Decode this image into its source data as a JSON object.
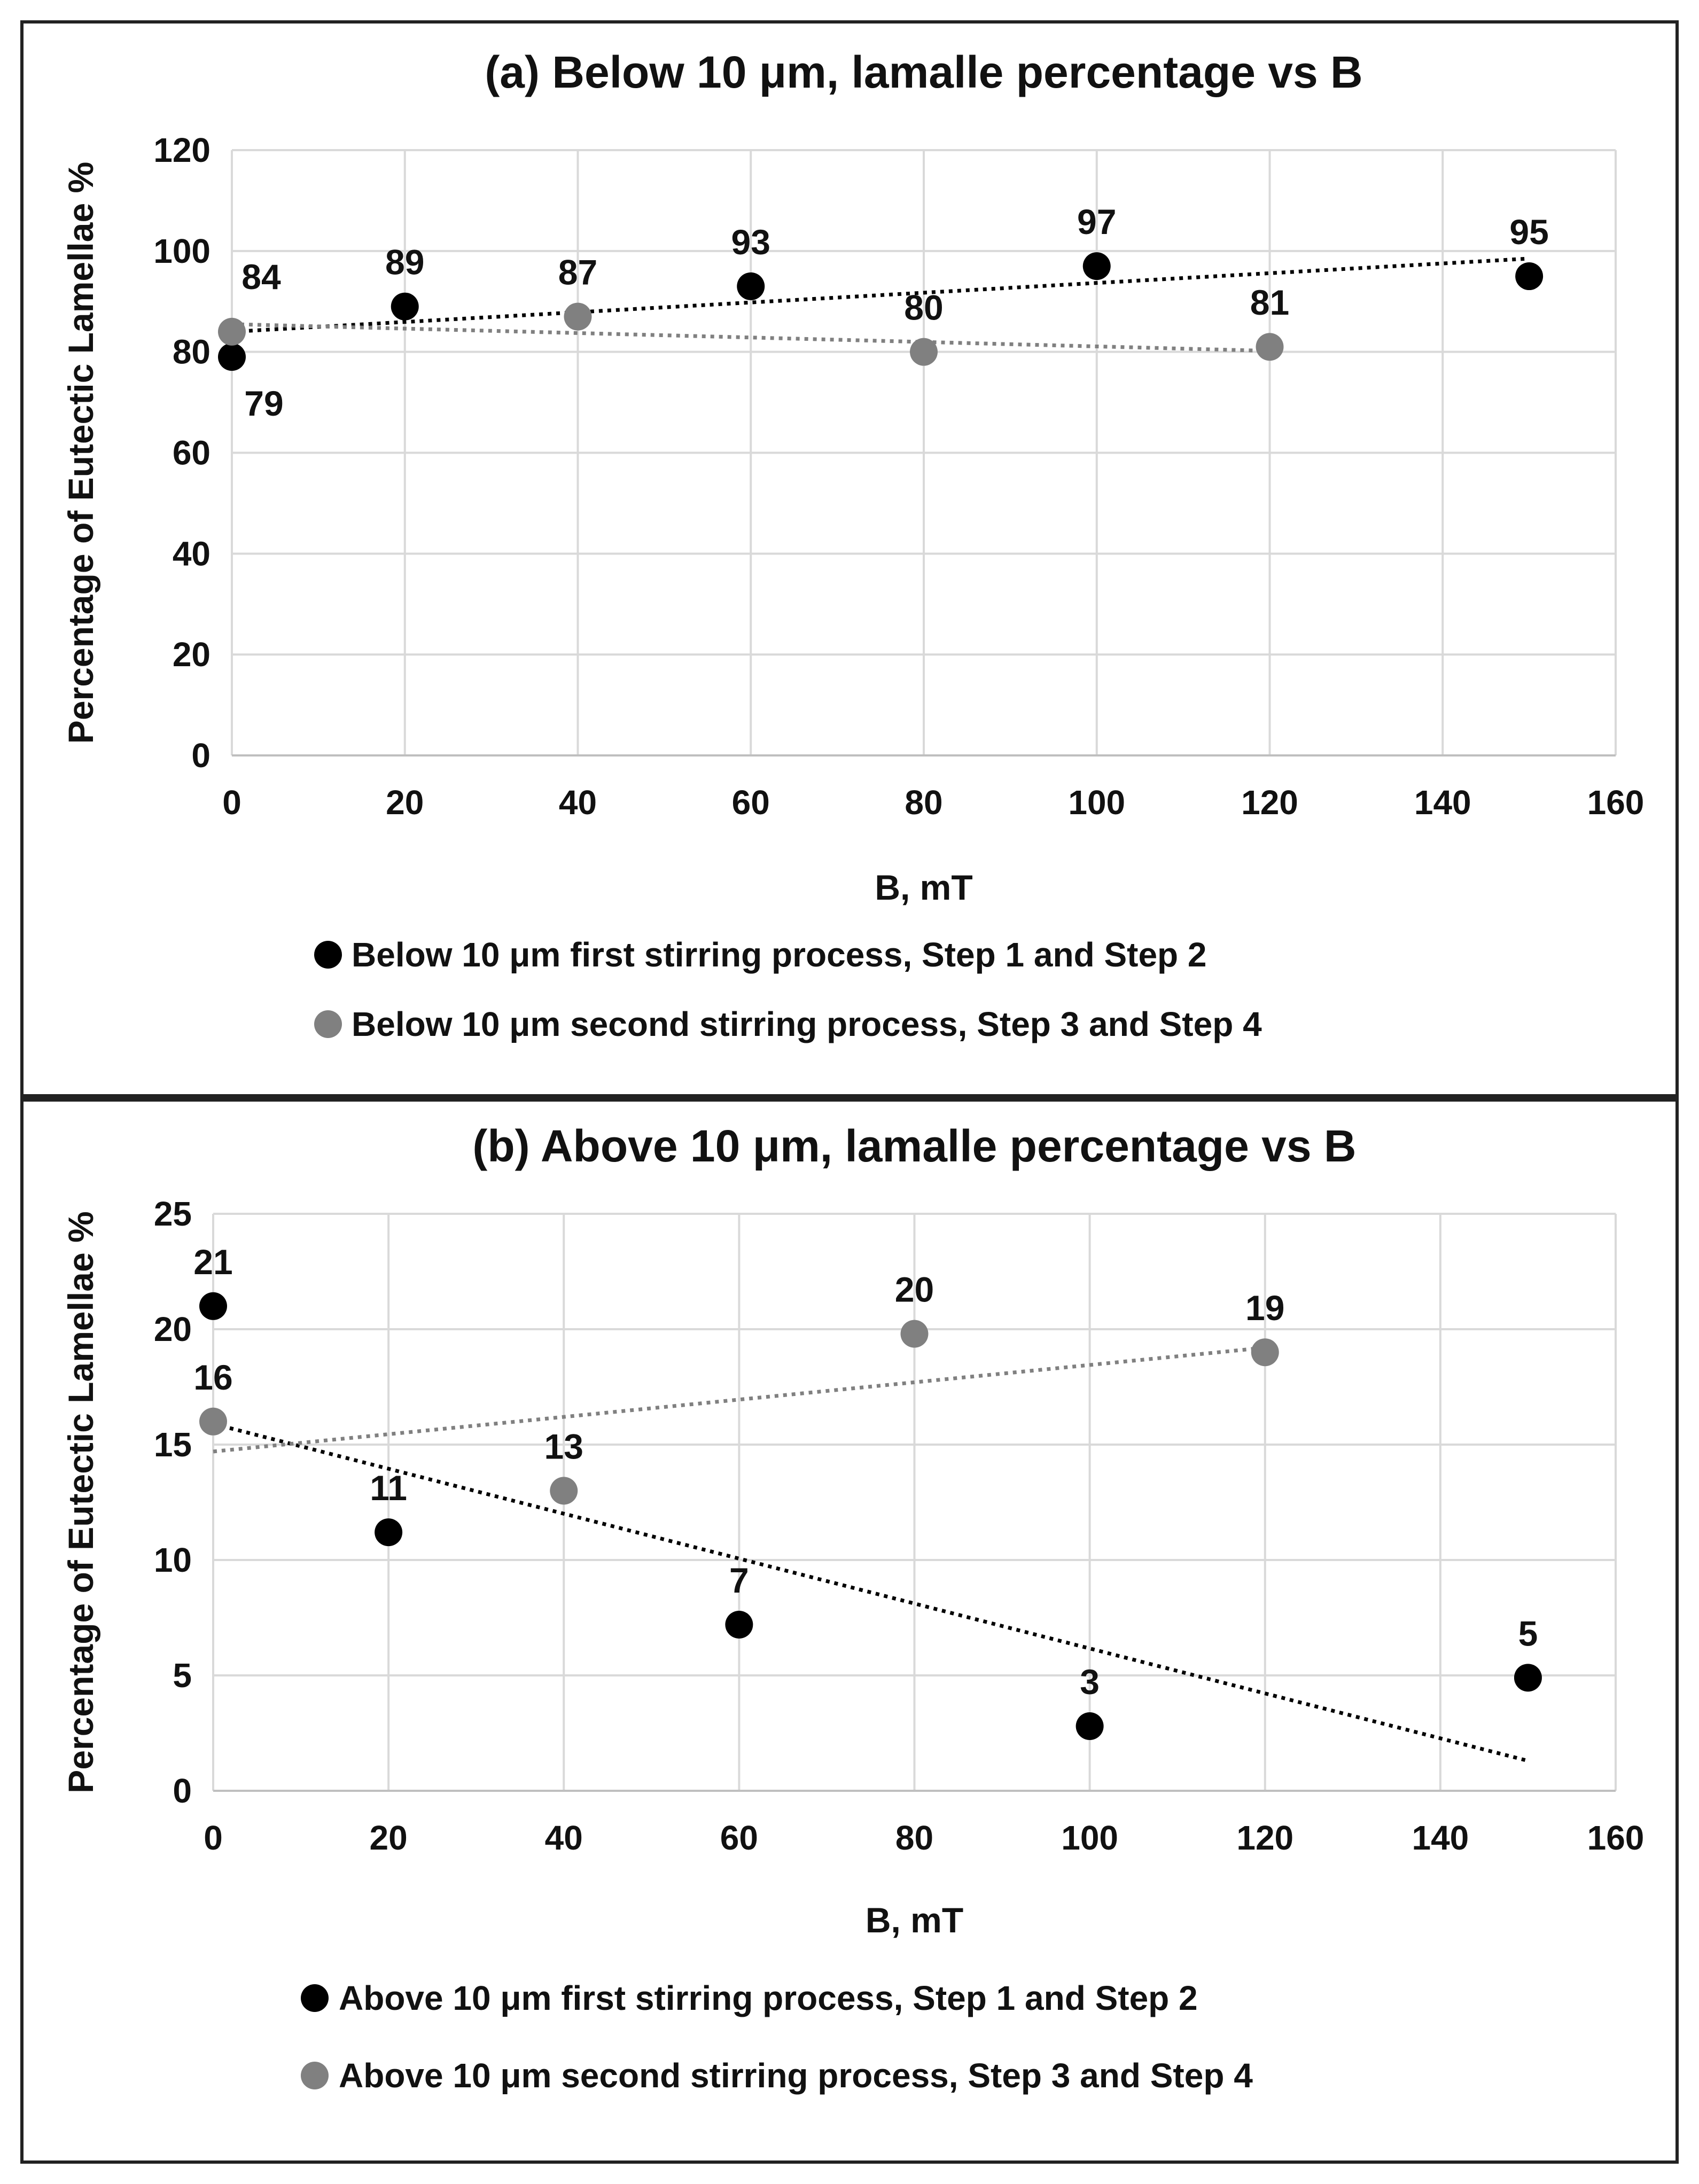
{
  "chart_data": [
    {
      "type": "scatter",
      "title": "(a) Below 10 μm,  lamalle percentage vs B",
      "xlabel": "B, mT",
      "ylabel": "Percentage of Eutectic Lamellae %",
      "xlim": [
        0,
        160
      ],
      "ylim": [
        0,
        120
      ],
      "xticks": [
        0,
        20,
        40,
        60,
        80,
        100,
        120,
        140,
        160
      ],
      "yticks": [
        0,
        20,
        40,
        60,
        80,
        100,
        120
      ],
      "grid": true,
      "legend_position": "bottom",
      "series": [
        {
          "name": "Below 10 μm first stirring process, Step 1 and Step 2",
          "color": "#000000",
          "x": [
            0,
            20,
            60,
            100,
            150
          ],
          "y": [
            79,
            89,
            93,
            97,
            95
          ],
          "labels": [
            "79",
            "89",
            "93",
            "97",
            "95"
          ],
          "label_pos": [
            "below",
            "above",
            "above",
            "above",
            "above"
          ],
          "trendline": {
            "type": "linear-dotted",
            "y_start": 84.0,
            "y_end": 98.5
          }
        },
        {
          "name": "Below 10 μm second stirring process, Step 3 and Step 4",
          "color": "#808080",
          "x": [
            0,
            40,
            80,
            120
          ],
          "y": [
            84,
            87,
            80,
            81
          ],
          "labels": [
            "84",
            "87",
            "80",
            "81"
          ],
          "label_pos": [
            "above-right",
            "above",
            "above",
            "above"
          ],
          "trendline": {
            "type": "linear-dotted",
            "y_start": 85.5,
            "y_end": 80.2
          }
        }
      ]
    },
    {
      "type": "scatter",
      "title": "(b) Above 10 μm,  lamalle percentage vs B",
      "xlabel": "B, mT",
      "ylabel": "Percentage of Eutectic Lamellae %",
      "xlim": [
        0,
        160
      ],
      "ylim": [
        0,
        25
      ],
      "xticks": [
        0,
        20,
        40,
        60,
        80,
        100,
        120,
        140,
        160
      ],
      "yticks": [
        0,
        5,
        10,
        15,
        20,
        25
      ],
      "grid": true,
      "legend_position": "bottom",
      "series": [
        {
          "name": "Above 10 μm first stirring process, Step 1 and Step 2",
          "color": "#000000",
          "x": [
            0,
            20,
            60,
            100,
            150
          ],
          "y": [
            21,
            11.2,
            7.2,
            2.8,
            4.9
          ],
          "labels": [
            "21",
            "11",
            "7",
            "3",
            "5"
          ],
          "label_pos": [
            "above",
            "above",
            "above",
            "above",
            "above"
          ],
          "trendline": {
            "type": "linear-dotted",
            "y_start": 15.9,
            "y_end": 1.3
          }
        },
        {
          "name": "Above 10 μm second stirring process, Step 3 and Step 4",
          "color": "#808080",
          "x": [
            0,
            40,
            80,
            120
          ],
          "y": [
            16,
            13,
            19.8,
            19
          ],
          "labels": [
            "16",
            "13",
            "20",
            "19"
          ],
          "label_pos": [
            "above",
            "above",
            "above",
            "above"
          ],
          "trendline": {
            "type": "linear-dotted",
            "y_start": 14.7,
            "y_end": 19.2
          }
        }
      ]
    }
  ]
}
